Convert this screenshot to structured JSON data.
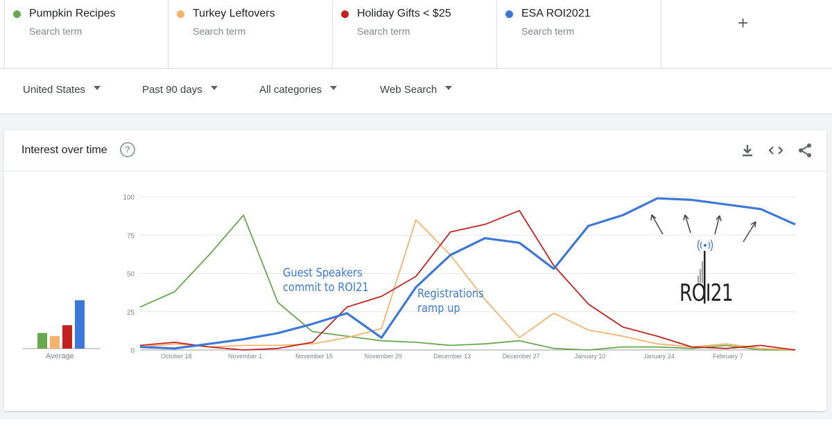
{
  "search_terms": [
    {
      "name": "Pumpkin Recipes",
      "sub": "Search term",
      "color": "#6aa84f"
    },
    {
      "name": "Turkey Leftovers",
      "sub": "Search term",
      "color": "#f6b26b"
    },
    {
      "name": "Holiday Gifts < $25",
      "sub": "Search term",
      "color": "#c5221f"
    },
    {
      "name": "ESA ROI2021",
      "sub": "Search term",
      "color": "#3c78d8"
    }
  ],
  "add_term_icon": "plus-icon",
  "filters": {
    "region": "United States",
    "time": "Past 90 days",
    "category": "All categories",
    "search_type": "Web Search"
  },
  "card": {
    "title": "Interest over time",
    "help_icon": "?",
    "icons": [
      "download-icon",
      "embed-code-icon",
      "share-icon"
    ]
  },
  "average_label": "Average",
  "annotations": {
    "speakers_line1": "Guest Speakers",
    "speakers_line2": "commit to ROI21",
    "registrations_line1": "Registrations",
    "registrations_line2": "ramp up"
  },
  "logo_text": "ROI21",
  "chart_data": {
    "type": "line",
    "ylim": [
      0,
      100
    ],
    "yticks": [
      "0",
      "25",
      "50",
      "75",
      "100"
    ],
    "xtick_labels": [
      "October 18",
      "November 1",
      "November 15",
      "November 29",
      "December 13",
      "December 27",
      "January 10",
      "January 24",
      "February 7"
    ],
    "grid": true,
    "series": [
      {
        "name": "Pumpkin Recipes",
        "color": "#6aa84f",
        "values": [
          28,
          38,
          62,
          88,
          31,
          12,
          9,
          6,
          5,
          3,
          4,
          6,
          1,
          0,
          2,
          2,
          1,
          3,
          0,
          0
        ]
      },
      {
        "name": "Turkey Leftovers",
        "color": "#f6b26b",
        "values": [
          2,
          4,
          2,
          3,
          3,
          4,
          8,
          14,
          85,
          62,
          33,
          8,
          24,
          13,
          9,
          4,
          2,
          4,
          1,
          0
        ]
      },
      {
        "name": "Holiday Gifts < $25",
        "color": "#c5221f",
        "values": [
          3,
          5,
          2,
          0,
          1,
          5,
          28,
          35,
          48,
          77,
          82,
          91,
          55,
          30,
          15,
          9,
          2,
          1,
          3,
          0
        ]
      },
      {
        "name": "ESA ROI2021",
        "color": "#3c78d8",
        "values": [
          2,
          1,
          4,
          7,
          11,
          17,
          24,
          8,
          41,
          62,
          73,
          70,
          53,
          81,
          88,
          99,
          98,
          95,
          92,
          82
        ]
      }
    ],
    "averages": [
      10,
      8,
      15,
      31
    ]
  }
}
